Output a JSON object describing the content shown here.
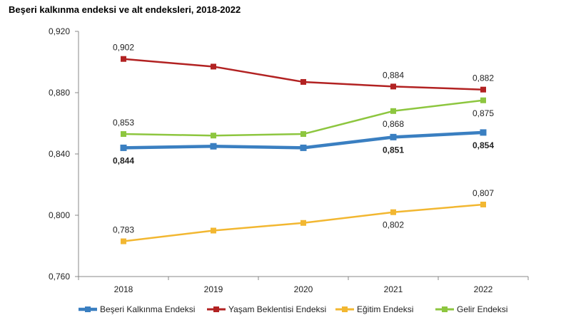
{
  "chart_data": {
    "type": "line",
    "title": "Beşeri kalkınma endeksi ve alt endeksleri, 2018-2022",
    "xlabel": "",
    "ylabel": "",
    "categories": [
      "2018",
      "2019",
      "2020",
      "2021",
      "2022"
    ],
    "ylim": [
      0.76,
      0.92
    ],
    "yticks": [
      "0,760",
      "0,800",
      "0,840",
      "0,880",
      "0,920"
    ],
    "grid": false,
    "legend": "bottom",
    "series": [
      {
        "name": "Beşeri Kalkınma Endeksi",
        "color": "#3a7fc1",
        "values": [
          0.844,
          0.845,
          0.844,
          0.851,
          0.854
        ],
        "labels": [
          "0,844",
          "",
          "",
          "0,851",
          "0,854"
        ],
        "label_pos": [
          "below",
          "",
          "",
          "below",
          "below"
        ],
        "bold": true
      },
      {
        "name": "Yaşam Beklentisi Endeksi",
        "color": "#b22222",
        "values": [
          0.902,
          0.897,
          0.887,
          0.884,
          0.882
        ],
        "labels": [
          "0,902",
          "",
          "",
          "0,884",
          "0,882"
        ],
        "label_pos": [
          "above",
          "",
          "",
          "above",
          "above"
        ],
        "bold": false
      },
      {
        "name": "Eğitim Endeksi",
        "color": "#f2b731",
        "values": [
          0.783,
          0.79,
          0.795,
          0.802,
          0.807
        ],
        "labels": [
          "0,783",
          "",
          "",
          "0,802",
          "0,807"
        ],
        "label_pos": [
          "above",
          "",
          "",
          "below",
          "above"
        ],
        "bold": false
      },
      {
        "name": "Gelir Endeksi",
        "color": "#8dc63f",
        "values": [
          0.853,
          0.852,
          0.853,
          0.868,
          0.875
        ],
        "labels": [
          "0,853",
          "",
          "",
          "0,868",
          "0,875"
        ],
        "label_pos": [
          "above",
          "",
          "",
          "below",
          "below"
        ],
        "bold": false
      }
    ]
  }
}
